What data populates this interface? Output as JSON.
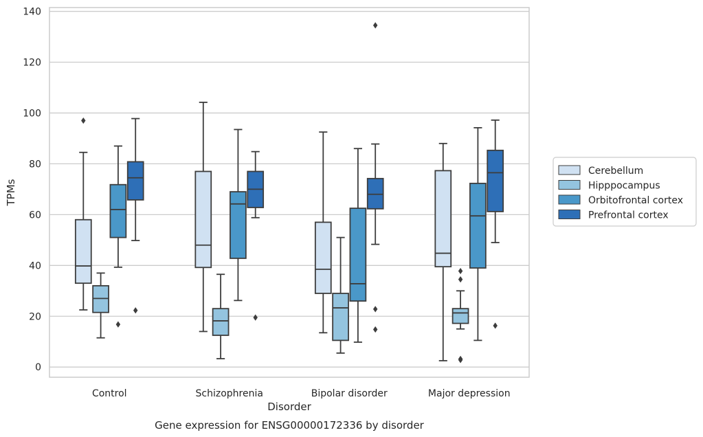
{
  "chart_data": {
    "type": "box",
    "caption": "Gene expression for ENSG00000172336 by disorder",
    "xlabel": "Disorder",
    "ylabel": "TPMs",
    "ylim": [
      -4,
      141.5
    ],
    "yticks": [
      0,
      20,
      40,
      60,
      80,
      100,
      120,
      140
    ],
    "grid": "horizontal",
    "legend_position": "right",
    "categories": [
      "Control",
      "Schizophrenia",
      "Bipolar disorder",
      "Major depression"
    ],
    "series": [
      {
        "name": "Cerebellum",
        "color": "#d0e1f2",
        "boxes": [
          {
            "whisker_low": 22.5,
            "q1": 33,
            "median": 39.8,
            "q3": 58,
            "whisker_high": 84.5,
            "outliers": [
              97
            ]
          },
          {
            "whisker_low": 14,
            "q1": 39.2,
            "median": 48,
            "q3": 77,
            "whisker_high": 104.2,
            "outliers": []
          },
          {
            "whisker_low": 13.5,
            "q1": 29,
            "median": 38.5,
            "q3": 57,
            "whisker_high": 92.5,
            "outliers": []
          },
          {
            "whisker_low": 2.5,
            "q1": 39.5,
            "median": 44.8,
            "q3": 77.3,
            "whisker_high": 88,
            "outliers": []
          }
        ]
      },
      {
        "name": "Hipppocampus",
        "color": "#94c4df",
        "boxes": [
          {
            "whisker_low": 11.5,
            "q1": 21.5,
            "median": 27,
            "q3": 32,
            "whisker_high": 37,
            "outliers": []
          },
          {
            "whisker_low": 3.3,
            "q1": 12.5,
            "median": 18.2,
            "q3": 23,
            "whisker_high": 36.5,
            "outliers": []
          },
          {
            "whisker_low": 5.5,
            "q1": 10.5,
            "median": 23.3,
            "q3": 29,
            "whisker_high": 51,
            "outliers": []
          },
          {
            "whisker_low": 15,
            "q1": 17.2,
            "median": 21.3,
            "q3": 23,
            "whisker_high": 30,
            "outliers": [
              37.8,
              34.5,
              3.2,
              2.8
            ]
          }
        ]
      },
      {
        "name": "Orbitofrontal cortex",
        "color": "#4a98c9",
        "boxes": [
          {
            "whisker_low": 39.3,
            "q1": 51,
            "median": 62,
            "q3": 71.8,
            "whisker_high": 87,
            "outliers": [
              16.8
            ]
          },
          {
            "whisker_low": 26.2,
            "q1": 42.8,
            "median": 64.2,
            "q3": 69,
            "whisker_high": 93.5,
            "outliers": []
          },
          {
            "whisker_low": 9.8,
            "q1": 26,
            "median": 32.8,
            "q3": 62.5,
            "whisker_high": 86,
            "outliers": []
          },
          {
            "whisker_low": 10.5,
            "q1": 39,
            "median": 59.5,
            "q3": 72.3,
            "whisker_high": 94.2,
            "outliers": []
          }
        ]
      },
      {
        "name": "Prefrontal cortex",
        "color": "#2e6fb7",
        "boxes": [
          {
            "whisker_low": 49.8,
            "q1": 65.8,
            "median": 74.5,
            "q3": 80.8,
            "whisker_high": 97.8,
            "outliers": [
              22.3
            ]
          },
          {
            "whisker_low": 58.8,
            "q1": 62.8,
            "median": 70,
            "q3": 77,
            "whisker_high": 84.8,
            "outliers": [
              19.5
            ]
          },
          {
            "whisker_low": 48.3,
            "q1": 62.3,
            "median": 68,
            "q3": 74.2,
            "whisker_high": 87.8,
            "outliers": [
              134.5,
              22.8,
              14.8
            ]
          },
          {
            "whisker_low": 49,
            "q1": 61.2,
            "median": 76.5,
            "q3": 85.3,
            "whisker_high": 97.2,
            "outliers": [
              16.3
            ]
          }
        ]
      }
    ]
  }
}
